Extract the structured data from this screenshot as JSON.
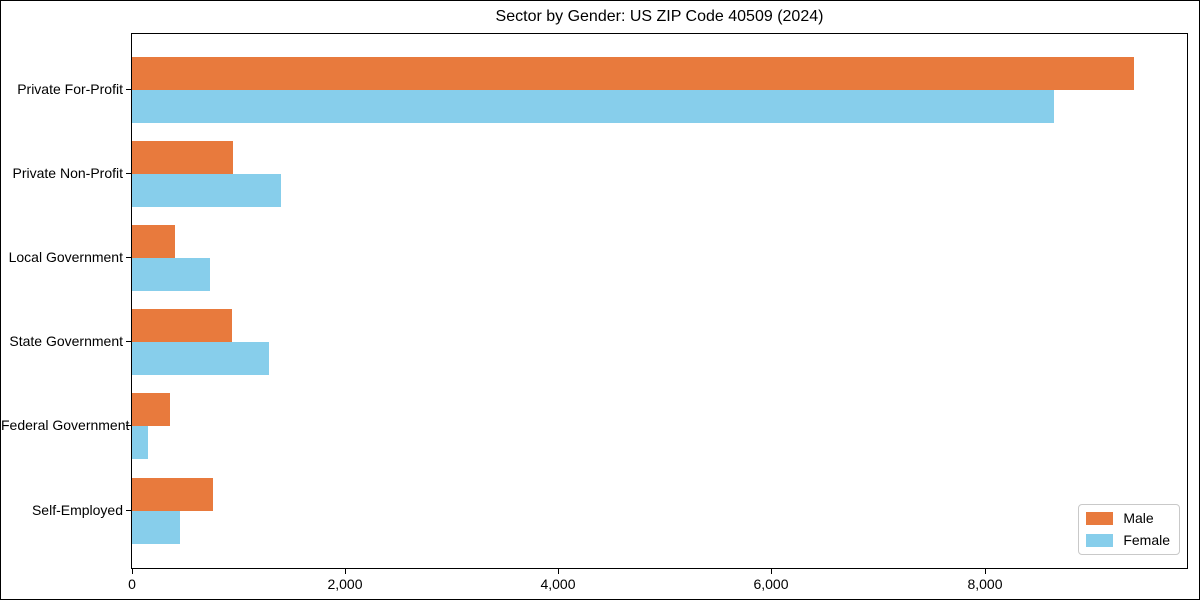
{
  "chart_data": {
    "type": "bar",
    "orientation": "horizontal",
    "title": "Sector by Gender: US ZIP Code 40509 (2024)",
    "categories": [
      "Private For-Profit",
      "Private Non-Profit",
      "Local Government",
      "State Government",
      "Federal Government",
      "Self-Employed"
    ],
    "series": [
      {
        "name": "Male",
        "color": "#e87a3d",
        "values": [
          9400,
          950,
          400,
          940,
          360,
          760
        ]
      },
      {
        "name": "Female",
        "color": "#87ceeb",
        "values": [
          8650,
          1400,
          730,
          1290,
          150,
          455
        ]
      }
    ],
    "xlabel": "",
    "ylabel": "",
    "xlim": [
      0,
      9900
    ],
    "x_ticks": [
      0,
      2000,
      4000,
      6000,
      8000
    ],
    "x_tick_labels": [
      "0",
      "2,000",
      "4,000",
      "6,000",
      "8,000"
    ],
    "grid": false,
    "legend": {
      "position": "lower right",
      "entries": [
        "Male",
        "Female"
      ]
    }
  }
}
